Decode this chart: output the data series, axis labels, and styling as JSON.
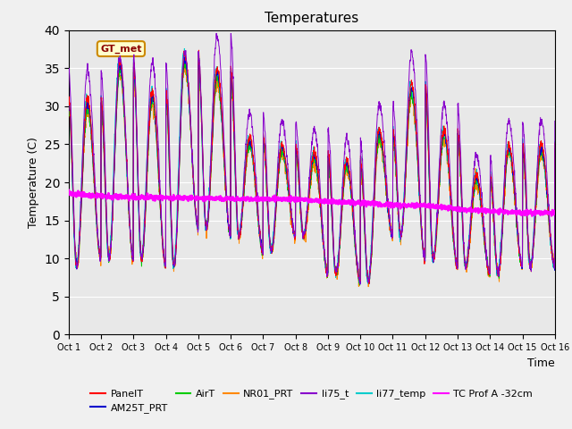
{
  "title": "Temperatures",
  "xlabel": "Time",
  "ylabel": "Temperature (C)",
  "xlim": [
    0,
    15
  ],
  "ylim": [
    0,
    40
  ],
  "yticks": [
    0,
    5,
    10,
    15,
    20,
    25,
    30,
    35,
    40
  ],
  "xtick_labels": [
    "Oct 1",
    "Oct 2",
    "Oct 3",
    "Oct 4",
    "Oct 5",
    "Oct 6",
    "Oct 7",
    "Oct 8",
    "Oct 9",
    "Oct 10",
    "Oct 11",
    "Oct 12",
    "Oct 13",
    "Oct 14",
    "Oct 15",
    "Oct 16"
  ],
  "background_color": "#e8e8e8",
  "fig_background": "#f0f0f0",
  "series_colors": {
    "PanelT": "#ff0000",
    "AM25T_PRT": "#0000cc",
    "AirT": "#00cc00",
    "NR01_PRT": "#ff8800",
    "li75_t": "#8800cc",
    "li77_temp": "#00cccc",
    "TC Prof A -32cm": "#ff00ff"
  },
  "annotation_text": "GT_met",
  "peak_heights": [
    31,
    36,
    32,
    37,
    35,
    26,
    25,
    24,
    23,
    27,
    33,
    27,
    21,
    25,
    25,
    27
  ],
  "trough_values": [
    9,
    10,
    10,
    9,
    14,
    13,
    11,
    13,
    8,
    7,
    13,
    10,
    9,
    8,
    9,
    7
  ],
  "tc_values": [
    18.5,
    18.2,
    18.0,
    18.0,
    17.9,
    17.8,
    17.8,
    17.8,
    17.5,
    17.3,
    17.0,
    17.0,
    16.5,
    16.2,
    16.0,
    15.8
  ]
}
